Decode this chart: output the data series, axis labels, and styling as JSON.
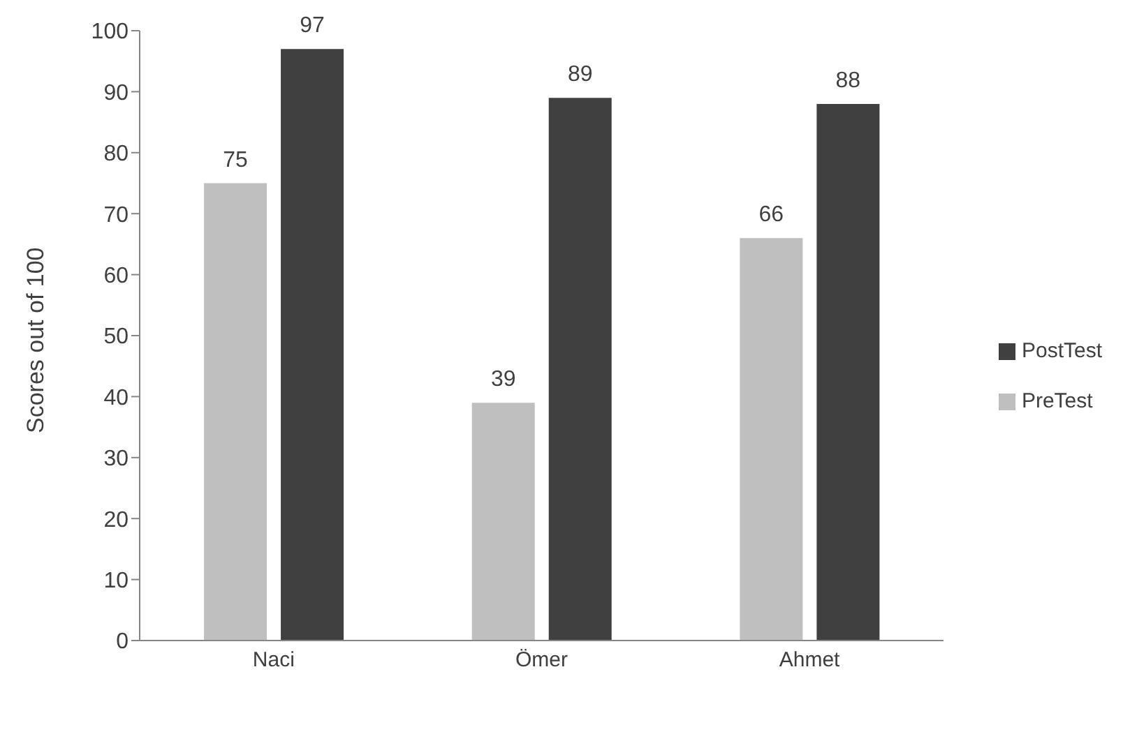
{
  "chart_data": {
    "type": "bar",
    "ylabel": "Scores out of 100",
    "categories": [
      "Naci",
      "Ömer",
      "Ahmet"
    ],
    "series": [
      {
        "name": "PreTest",
        "color": "#bfbfbf",
        "values": [
          75,
          39,
          66
        ]
      },
      {
        "name": "PostTest",
        "color": "#404040",
        "values": [
          97,
          89,
          88
        ]
      }
    ],
    "ylim": [
      0,
      100
    ],
    "yticks": [
      0,
      10,
      20,
      30,
      40,
      50,
      60,
      70,
      80,
      90,
      100
    ],
    "grid": false,
    "legend": "right",
    "data_labels": true
  }
}
